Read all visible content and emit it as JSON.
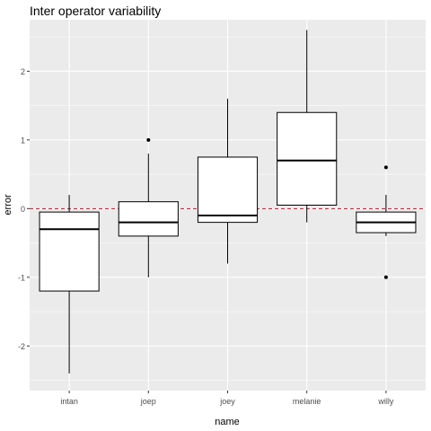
{
  "chart_data": {
    "type": "boxplot",
    "title": "Inter operator variability",
    "xlabel": "name",
    "ylabel": "error",
    "categories": [
      "intan",
      "joep",
      "joey",
      "melanie",
      "willy"
    ],
    "ylim": [
      -2.65,
      2.75
    ],
    "yticks": [
      -2,
      -1,
      0,
      1,
      2
    ],
    "reference_line": {
      "y": 0,
      "style": "dashed",
      "color": "#b2182b"
    },
    "boxes": [
      {
        "name": "intan",
        "lower_whisker": -2.4,
        "q1": -1.2,
        "median": -0.3,
        "q3": -0.05,
        "upper_whisker": 0.2,
        "outliers": []
      },
      {
        "name": "joep",
        "lower_whisker": -1.0,
        "q1": -0.4,
        "median": -0.2,
        "q3": 0.1,
        "upper_whisker": 0.8,
        "outliers": [
          1.0
        ]
      },
      {
        "name": "joey",
        "lower_whisker": -0.8,
        "q1": -0.2,
        "median": -0.1,
        "q3": 0.75,
        "upper_whisker": 1.6,
        "outliers": []
      },
      {
        "name": "melanie",
        "lower_whisker": -0.2,
        "q1": 0.05,
        "median": 0.7,
        "q3": 1.4,
        "upper_whisker": 2.6,
        "outliers": []
      },
      {
        "name": "willy",
        "lower_whisker": -0.4,
        "q1": -0.35,
        "median": -0.2,
        "q3": -0.05,
        "upper_whisker": 0.2,
        "outliers": [
          0.6,
          -1.0
        ]
      }
    ],
    "grid": true,
    "colors": {
      "panel": "#ebebeb",
      "grid": "#ffffff",
      "box_fill": "#ffffff",
      "box_stroke": "#000000",
      "text": "#000000",
      "tick_text": "#4d4d4d"
    }
  }
}
